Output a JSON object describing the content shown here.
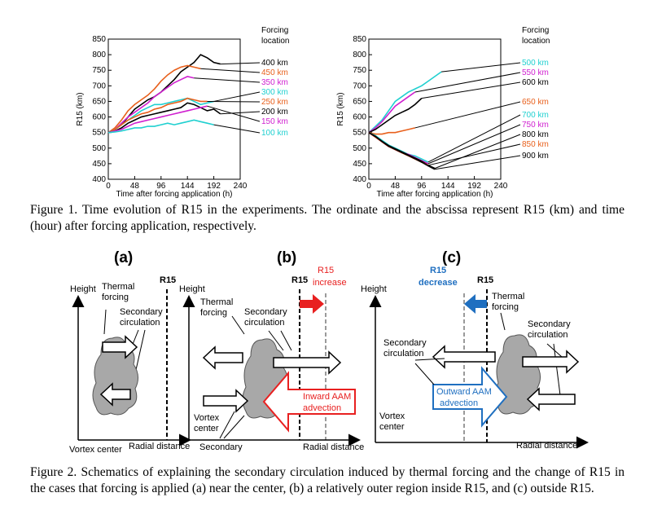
{
  "figure1": {
    "caption": "Figure 1. Time evolution of R15 in the experiments. The ordinate and the abscissa represent R15 (km) and time (hour) after forcing application, respectively.",
    "chart_data": [
      {
        "type": "line",
        "panel": "left",
        "ylabel": "R15 (km)",
        "xlabel": "Time after forcing application (h)",
        "ylim": [
          400,
          850
        ],
        "xlim": [
          0,
          240
        ],
        "yticks": [
          "850",
          "800",
          "750",
          "700",
          "650",
          "600",
          "550",
          "500",
          "450",
          "400"
        ],
        "xticks": [
          "0",
          "48",
          "96",
          "144",
          "192",
          "240"
        ],
        "legend_title": "Forcing location",
        "series": [
          {
            "name": "400 km",
            "color": "#000000",
            "x": [
              0,
              12,
              24,
              36,
              48,
              60,
              72,
              84,
              96,
              108,
              120,
              132,
              144,
              156,
              168,
              180,
              192,
              204
            ],
            "y": [
              550,
              560,
              575,
              600,
              625,
              640,
              655,
              665,
              680,
              700,
              720,
              745,
              760,
              775,
              800,
              790,
              775,
              770
            ]
          },
          {
            "name": "450 km",
            "color": "#e8601c",
            "x": [
              0,
              12,
              24,
              36,
              48,
              60,
              72,
              84,
              96,
              108,
              120,
              132,
              144,
              156,
              168
            ],
            "y": [
              550,
              565,
              590,
              620,
              640,
              655,
              670,
              690,
              715,
              735,
              750,
              760,
              765,
              760,
              755
            ]
          },
          {
            "name": "350 km",
            "color": "#d020d0",
            "x": [
              0,
              12,
              24,
              36,
              48,
              60,
              72,
              84,
              96,
              108,
              120,
              132,
              144,
              156
            ],
            "y": [
              550,
              560,
              580,
              600,
              615,
              630,
              645,
              665,
              680,
              695,
              710,
              720,
              730,
              725
            ]
          },
          {
            "name": "300 km",
            "color": "#20d0d0",
            "x": [
              0,
              12,
              24,
              36,
              48,
              60,
              72,
              84,
              96,
              108,
              120,
              132,
              144,
              156,
              168,
              180,
              192
            ],
            "y": [
              550,
              560,
              575,
              590,
              605,
              620,
              630,
              640,
              640,
              645,
              650,
              655,
              660,
              650,
              640,
              645,
              650
            ]
          },
          {
            "name": "250 km",
            "color": "#e8601c",
            "x": [
              0,
              12,
              24,
              36,
              48,
              60,
              72,
              84,
              96,
              108,
              120,
              132,
              144,
              156,
              168,
              180
            ],
            "y": [
              550,
              560,
              575,
              590,
              600,
              610,
              615,
              625,
              630,
              640,
              645,
              650,
              660,
              655,
              650,
              650
            ]
          },
          {
            "name": "200 km",
            "color": "#000000",
            "x": [
              0,
              12,
              24,
              36,
              48,
              60,
              72,
              84,
              96,
              108,
              120,
              132,
              144,
              156,
              168,
              180,
              192,
              204
            ],
            "y": [
              550,
              555,
              565,
              580,
              590,
              600,
              605,
              610,
              615,
              620,
              625,
              630,
              645,
              640,
              630,
              620,
              625,
              610
            ]
          },
          {
            "name": "150 km",
            "color": "#d020d0",
            "x": [
              0,
              12,
              24,
              36,
              48,
              60,
              72,
              84,
              96,
              108,
              120,
              132,
              144,
              156,
              168,
              180
            ],
            "y": [
              550,
              555,
              560,
              570,
              580,
              585,
              590,
              595,
              600,
              605,
              610,
              615,
              620,
              625,
              630,
              635
            ]
          },
          {
            "name": "100 km",
            "color": "#20d0d0",
            "x": [
              0,
              12,
              24,
              36,
              48,
              60,
              72,
              84,
              96,
              108,
              120,
              132,
              144,
              156,
              168,
              180,
              192
            ],
            "y": [
              550,
              552,
              555,
              560,
              565,
              565,
              570,
              570,
              575,
              580,
              575,
              580,
              585,
              590,
              585,
              580,
              575
            ]
          }
        ]
      },
      {
        "type": "line",
        "panel": "right",
        "ylabel": "R15 (km)",
        "xlabel": "Time after forcing application (h)",
        "ylim": [
          400,
          850
        ],
        "xlim": [
          0,
          240
        ],
        "yticks": [
          "850",
          "800",
          "750",
          "700",
          "650",
          "600",
          "550",
          "500",
          "450",
          "400"
        ],
        "xticks": [
          "0",
          "48",
          "96",
          "144",
          "192",
          "240"
        ],
        "legend_title": "Forcing location",
        "series": [
          {
            "name": "500 km",
            "color": "#20d0d0",
            "x": [
              0,
              12,
              24,
              36,
              48,
              60,
              72,
              84,
              96,
              108,
              120,
              132
            ],
            "y": [
              550,
              570,
              590,
              620,
              650,
              665,
              680,
              690,
              700,
              715,
              730,
              745
            ]
          },
          {
            "name": "550 km",
            "color": "#d020d0",
            "x": [
              0,
              12,
              24,
              36,
              48,
              60,
              72,
              84
            ],
            "y": [
              550,
              565,
              585,
              610,
              635,
              650,
              665,
              680
            ]
          },
          {
            "name": "600 km",
            "color": "#000000",
            "x": [
              0,
              12,
              24,
              36,
              48,
              60,
              72,
              84,
              96
            ],
            "y": [
              550,
              560,
              575,
              590,
              605,
              615,
              625,
              640,
              660
            ]
          },
          {
            "name": "650 km",
            "color": "#e8601c",
            "x": [
              0,
              12,
              24,
              36,
              48,
              60,
              72,
              84
            ],
            "y": [
              550,
              545,
              545,
              550,
              550,
              555,
              560,
              565
            ]
          },
          {
            "name": "700 km",
            "color": "#20d0d0",
            "x": [
              0,
              12,
              24,
              36,
              48,
              60,
              72,
              84,
              96,
              108
            ],
            "y": [
              550,
              540,
              525,
              510,
              500,
              490,
              480,
              475,
              465,
              455
            ]
          },
          {
            "name": "750 km",
            "color": "#d020d0",
            "x": [
              0,
              12,
              24,
              36,
              48,
              60,
              72,
              84,
              96,
              108
            ],
            "y": [
              550,
              535,
              520,
              505,
              495,
              485,
              480,
              470,
              460,
              450
            ]
          },
          {
            "name": "800 km",
            "color": "#000000",
            "x": [
              0,
              12,
              24,
              36,
              48,
              60,
              72,
              84,
              96,
              108,
              120
            ],
            "y": [
              550,
              538,
              522,
              508,
              498,
              488,
              478,
              468,
              458,
              445,
              435
            ]
          },
          {
            "name": "850 km",
            "color": "#e8601c",
            "x": [
              0,
              12,
              24,
              36,
              48,
              60,
              72,
              84,
              96,
              108
            ],
            "y": [
              550,
              535,
              520,
              505,
              495,
              485,
              475,
              465,
              455,
              445
            ]
          },
          {
            "name": "900 km",
            "color": "#000000",
            "x": [
              0,
              12,
              24,
              36,
              48,
              60,
              72,
              84,
              96,
              108,
              120
            ],
            "y": [
              550,
              537,
              521,
              506,
              496,
              486,
              476,
              466,
              455,
              443,
              432
            ]
          }
        ]
      }
    ]
  },
  "figure2": {
    "caption": "Figure 2. Schematics of explaining the secondary circulation induced by thermal forcing and the change of R15 in the cases that forcing is applied (a) near the center, (b) a relatively outer region inside R15, and (c) outside R15.",
    "panel_a": {
      "label": "(a)",
      "r15": "R15",
      "height": "Height",
      "thermal_forcing": "Thermal forcing",
      "secondary": "Secondary circulation",
      "vortex_center": "Vortex center",
      "radial": "Radial distance"
    },
    "panel_b": {
      "label": "(b)",
      "r15": "R15",
      "r15_change": "R15 increase",
      "height": "Height",
      "thermal_forcing": "Thermal forcing",
      "secondary": "Secondary circulation",
      "advection": "Inward AAM advection",
      "vortex_center": "Vortex center",
      "secondary_bottom": "Secondary",
      "radial": "Radial distance"
    },
    "panel_c": {
      "label": "(c)",
      "r15": "R15",
      "r15_change": "R15 decrease",
      "height": "Height",
      "thermal_forcing": "Thermal forcing",
      "secondary_right": "Secondary circulation",
      "secondary_left": "Secondary circulation",
      "advection": "Outward AAM advection",
      "vortex_center": "Vortex center",
      "radial": "Radial distance"
    },
    "colors": {
      "red": "#e82020",
      "blue": "#1f6fc0",
      "cloud": "#a8a8a8",
      "dashed_gray": "#9a9a9a"
    }
  }
}
